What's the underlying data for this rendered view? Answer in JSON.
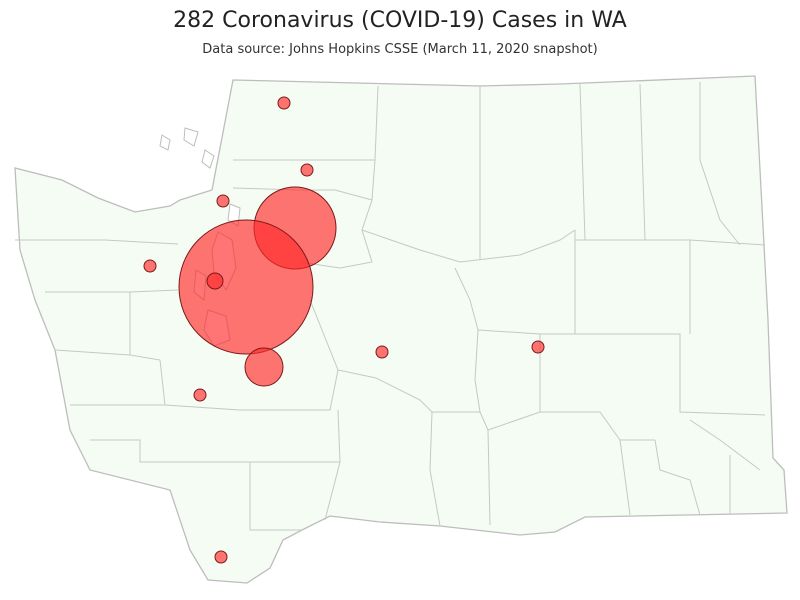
{
  "title": "282 Coronavirus (COVID-19) Cases in WA",
  "subtitle": "Data source: Johns Hopkins CSSE (March 11, 2020 snapshot)",
  "colors": {
    "land": "#f5fcf4",
    "border": "#bdbdbd",
    "bubble_fill": "#ff2a2a",
    "bubble_stroke": "#7a1a1a"
  },
  "state": "WA",
  "total_cases": 282
}
